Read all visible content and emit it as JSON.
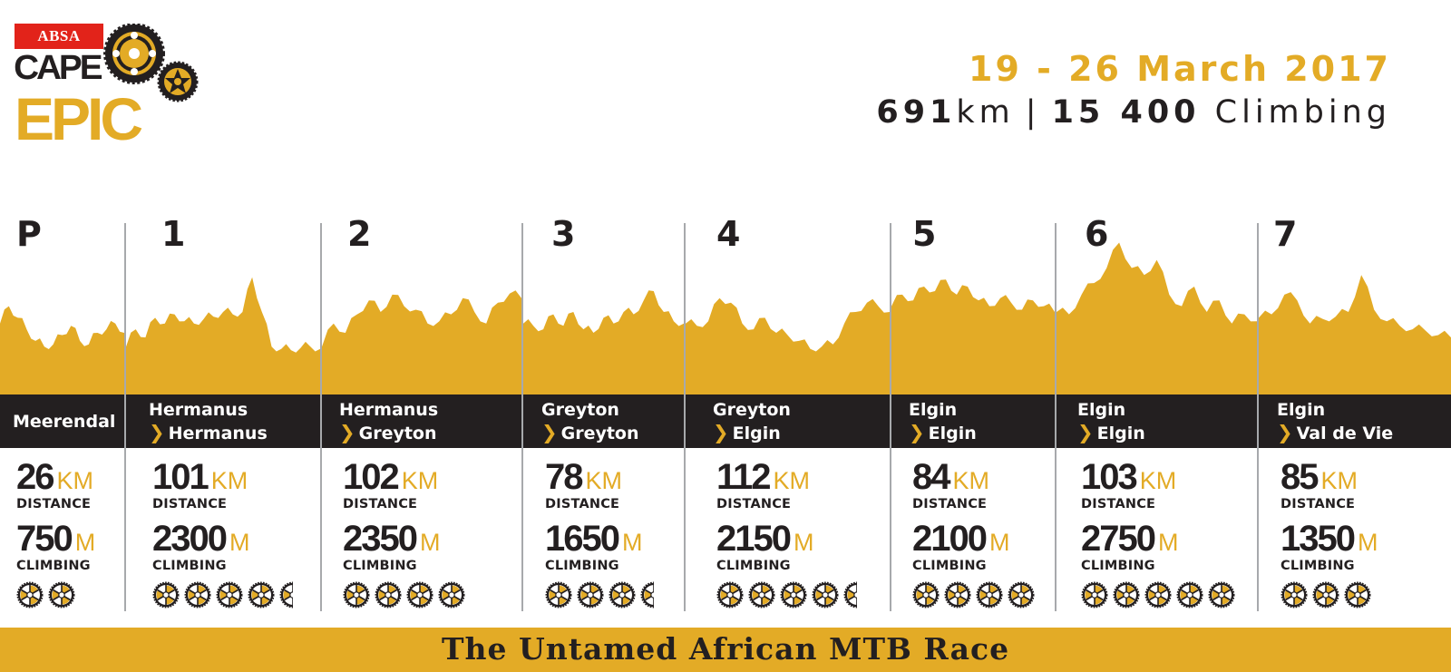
{
  "brand": {
    "sponsor": "ABSA",
    "line1": "CAPE",
    "line2": "EPIC",
    "colors": {
      "gold": "#e3ab26",
      "dark": "#231f20",
      "red": "#e2231a",
      "divider": "#a7a9ac"
    }
  },
  "header": {
    "dates": "19 - 26 March 2017",
    "total_distance_value": "691",
    "total_distance_unit": "km",
    "separator": "|",
    "total_climbing_value": "15 400",
    "total_climbing_label": "Climbing"
  },
  "labels": {
    "distance": "DISTANCE",
    "climbing": "CLIMBING",
    "km_unit": "KM",
    "m_unit": "M",
    "chevron": "›"
  },
  "stages": [
    {
      "id": "P",
      "from": "Meerendal",
      "to": "",
      "distance_km": "26",
      "climbing_m": "750",
      "difficulty": 2
    },
    {
      "id": "1",
      "from": "Hermanus",
      "to": "Hermanus",
      "distance_km": "101",
      "climbing_m": "2300",
      "difficulty": 4.5
    },
    {
      "id": "2",
      "from": "Hermanus",
      "to": "Greyton",
      "distance_km": "102",
      "climbing_m": "2350",
      "difficulty": 4
    },
    {
      "id": "3",
      "from": "Greyton",
      "to": "Greyton",
      "distance_km": "78",
      "climbing_m": "1650",
      "difficulty": 3.5
    },
    {
      "id": "4",
      "from": "Greyton",
      "to": "Elgin",
      "distance_km": "112",
      "climbing_m": "2150",
      "difficulty": 4.5
    },
    {
      "id": "5",
      "from": "Elgin",
      "to": "Elgin",
      "distance_km": "84",
      "climbing_m": "2100",
      "difficulty": 4
    },
    {
      "id": "6",
      "from": "Elgin",
      "to": "Elgin",
      "distance_km": "103",
      "climbing_m": "2750",
      "difficulty": 5
    },
    {
      "id": "7",
      "from": "Elgin",
      "to": "Val de Vie",
      "distance_km": "85",
      "climbing_m": "1350",
      "difficulty": 3
    }
  ],
  "chart_data": {
    "type": "area",
    "title": "Stage elevation profiles (relative, unlabeled)",
    "xlabel": "",
    "ylabel": "",
    "grid": false,
    "ylim": [
      0,
      1
    ],
    "series": [
      {
        "name": "P",
        "values": [
          0.3,
          0.45,
          0.35,
          0.25,
          0.15,
          0.1,
          0.12,
          0.2,
          0.28,
          0.15,
          0.12,
          0.22,
          0.25,
          0.3,
          0.22
        ]
      },
      {
        "name": "1",
        "values": [
          0.1,
          0.25,
          0.18,
          0.35,
          0.3,
          0.38,
          0.32,
          0.3,
          0.34,
          0.36,
          0.4,
          0.38,
          0.4,
          0.7,
          0.4,
          0.1,
          0.08,
          0.07,
          0.09,
          0.1,
          0.08
        ]
      },
      {
        "name": "2",
        "values": [
          0.1,
          0.3,
          0.22,
          0.38,
          0.5,
          0.4,
          0.55,
          0.45,
          0.42,
          0.3,
          0.32,
          0.38,
          0.52,
          0.4,
          0.3,
          0.48,
          0.56,
          0.52
        ]
      },
      {
        "name": "3",
        "values": [
          0.3,
          0.28,
          0.25,
          0.38,
          0.28,
          0.4,
          0.25,
          0.22,
          0.35,
          0.3,
          0.4,
          0.38,
          0.5,
          0.58,
          0.4,
          0.32,
          0.3
        ]
      },
      {
        "name": "4",
        "values": [
          0.3,
          0.28,
          0.32,
          0.52,
          0.48,
          0.3,
          0.25,
          0.35,
          0.22,
          0.2,
          0.15,
          0.08,
          0.1,
          0.12,
          0.3,
          0.4,
          0.48,
          0.45,
          0.4
        ]
      },
      {
        "name": "5",
        "values": [
          0.45,
          0.55,
          0.5,
          0.62,
          0.58,
          0.68,
          0.55,
          0.62,
          0.5,
          0.45,
          0.52,
          0.48,
          0.42,
          0.5,
          0.45,
          0.4
        ]
      },
      {
        "name": "6",
        "values": [
          0.4,
          0.38,
          0.55,
          0.65,
          0.78,
          1.0,
          0.78,
          0.72,
          0.85,
          0.55,
          0.45,
          0.62,
          0.4,
          0.5,
          0.3,
          0.38,
          0.32
        ]
      },
      {
        "name": "7",
        "values": [
          0.35,
          0.38,
          0.55,
          0.5,
          0.3,
          0.34,
          0.36,
          0.4,
          0.72,
          0.42,
          0.32,
          0.28,
          0.25,
          0.24,
          0.2,
          0.18
        ]
      }
    ]
  },
  "footer": {
    "tagline": "The Untamed African MTB Race"
  }
}
